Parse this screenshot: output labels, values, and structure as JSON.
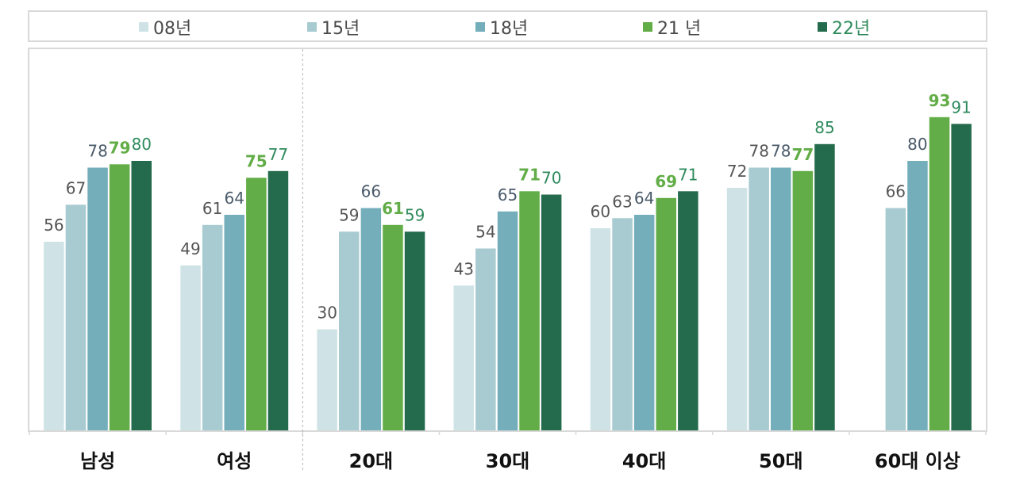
{
  "chart_data": {
    "type": "bar",
    "categories": [
      "남성",
      "여성",
      "20대",
      "30대",
      "40대",
      "50대",
      "60대 이상"
    ],
    "series": [
      {
        "name": "08년",
        "color": "#cfe3e6",
        "label_color": "#555555",
        "values": [
          56,
          49,
          30,
          43,
          60,
          72,
          null
        ]
      },
      {
        "name": "15년",
        "color": "#a8cbd1",
        "label_color": "#555555",
        "values": [
          67,
          61,
          59,
          54,
          63,
          78,
          66
        ]
      },
      {
        "name": "18년",
        "color": "#74aebb",
        "label_color": "#4a5a6a",
        "values": [
          78,
          64,
          66,
          65,
          64,
          78,
          80
        ]
      },
      {
        "name": "21 년",
        "color": "#62ad47",
        "label_color": "#62ad47",
        "values": [
          79,
          75,
          61,
          71,
          69,
          77,
          93
        ]
      },
      {
        "name": "22년",
        "color": "#246b4d",
        "label_color": "#2e8a5c",
        "values": [
          80,
          77,
          59,
          70,
          71,
          85,
          91
        ]
      }
    ],
    "ylim": [
      0,
      100
    ],
    "legend_position": "top",
    "grid": false,
    "separator_after_category": 1
  }
}
